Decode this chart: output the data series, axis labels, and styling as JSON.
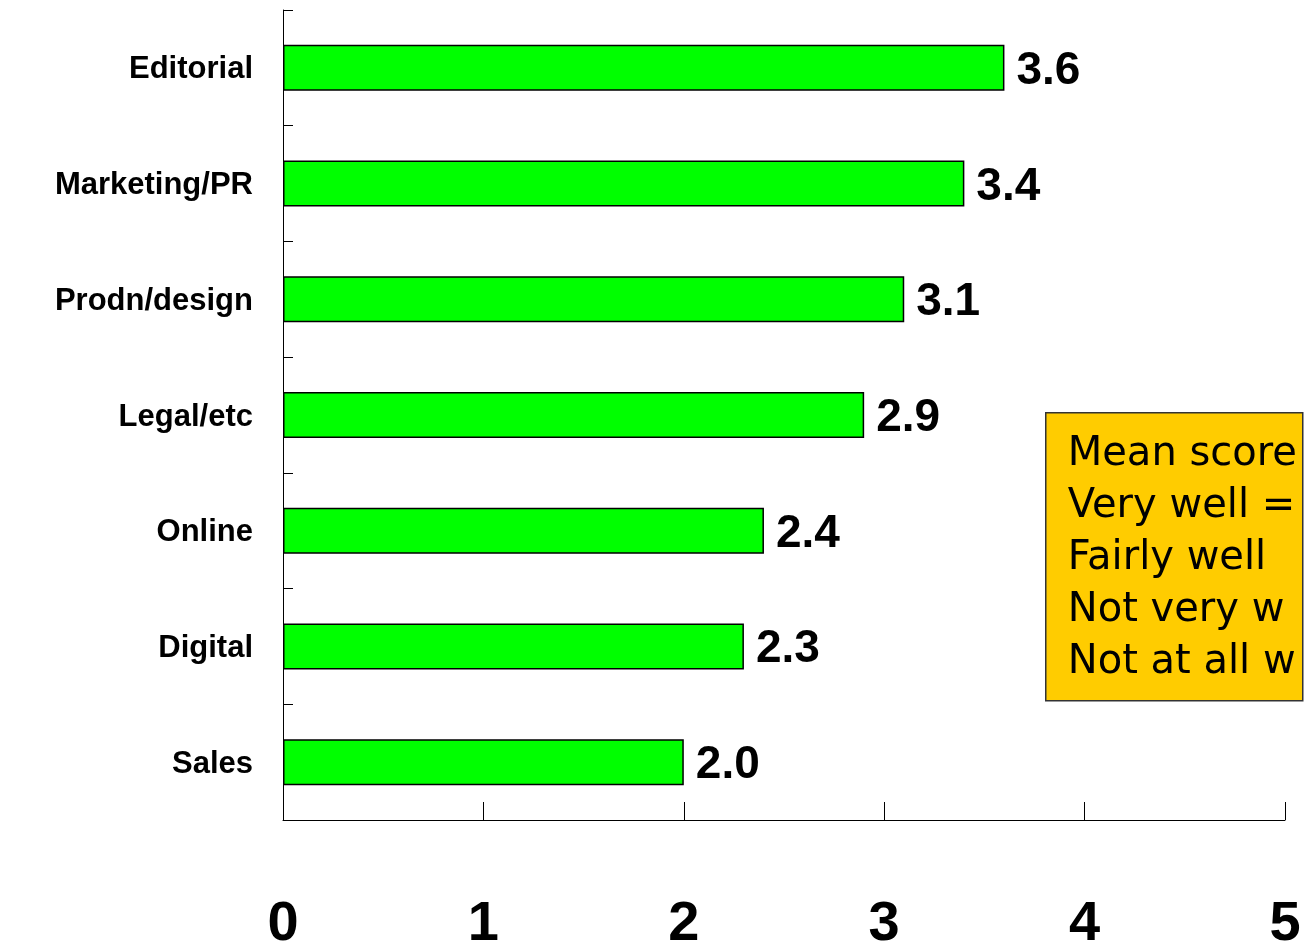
{
  "chart_data": {
    "type": "bar",
    "orientation": "horizontal",
    "categories": [
      "Editorial",
      "Marketing/PR",
      "Prodn/design",
      "Legal/etc",
      "Online",
      "Digital",
      "Sales"
    ],
    "values": [
      3.6,
      3.4,
      3.1,
      2.9,
      2.4,
      2.3,
      2.0
    ],
    "value_labels": [
      "3.6",
      "3.4",
      "3.1",
      "2.9",
      "2.4",
      "2.3",
      "2.0"
    ],
    "color": "#00ff00",
    "xlim": [
      0,
      5
    ],
    "xticks": [
      0,
      1,
      2,
      3,
      4,
      5
    ],
    "grid": false,
    "annotations": [
      "Mean score",
      "Very well =",
      "Fairly well",
      "Not very w",
      "Not at all w"
    ]
  }
}
